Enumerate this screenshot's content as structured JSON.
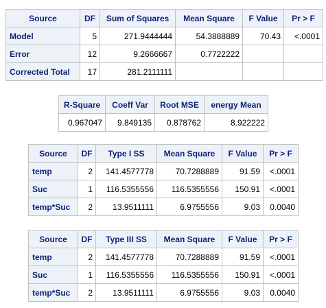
{
  "anova": {
    "headers": [
      "Source",
      "DF",
      "Sum of Squares",
      "Mean Square",
      "F Value",
      "Pr > F"
    ],
    "rows": [
      {
        "source": "Model",
        "df": "5",
        "ss": "271.9444444",
        "ms": "54.3888889",
        "f": "70.43",
        "p": "<.0001"
      },
      {
        "source": "Error",
        "df": "12",
        "ss": "9.2666667",
        "ms": "0.7722222",
        "f": "",
        "p": ""
      },
      {
        "source": "Corrected Total",
        "df": "17",
        "ss": "281.2111111",
        "ms": "",
        "f": "",
        "p": ""
      }
    ]
  },
  "fit": {
    "headers": [
      "R-Square",
      "Coeff Var",
      "Root MSE",
      "energy Mean"
    ],
    "values": [
      "0.967047",
      "9.849135",
      "0.878762",
      "8.922222"
    ]
  },
  "type1": {
    "headers": [
      "Source",
      "DF",
      "Type I SS",
      "Mean Square",
      "F Value",
      "Pr > F"
    ],
    "rows": [
      {
        "source": "temp",
        "df": "2",
        "ss": "141.4577778",
        "ms": "70.7288889",
        "f": "91.59",
        "p": "<.0001"
      },
      {
        "source": "Suc",
        "df": "1",
        "ss": "116.5355556",
        "ms": "116.5355556",
        "f": "150.91",
        "p": "<.0001"
      },
      {
        "source": "temp*Suc",
        "df": "2",
        "ss": "13.9511111",
        "ms": "6.9755556",
        "f": "9.03",
        "p": "0.0040"
      }
    ]
  },
  "type3": {
    "headers": [
      "Source",
      "DF",
      "Type III SS",
      "Mean Square",
      "F Value",
      "Pr > F"
    ],
    "rows": [
      {
        "source": "temp",
        "df": "2",
        "ss": "141.4577778",
        "ms": "70.7288889",
        "f": "91.59",
        "p": "<.0001"
      },
      {
        "source": "Suc",
        "df": "1",
        "ss": "116.5355556",
        "ms": "116.5355556",
        "f": "150.91",
        "p": "<.0001"
      },
      {
        "source": "temp*Suc",
        "df": "2",
        "ss": "13.9511111",
        "ms": "6.9755556",
        "f": "9.03",
        "p": "0.0040"
      }
    ]
  },
  "colors": {
    "header_bg": "#edf2f9",
    "header_text": "#112277",
    "border": "#c1c1c1",
    "cell_bg": "#ffffff"
  }
}
